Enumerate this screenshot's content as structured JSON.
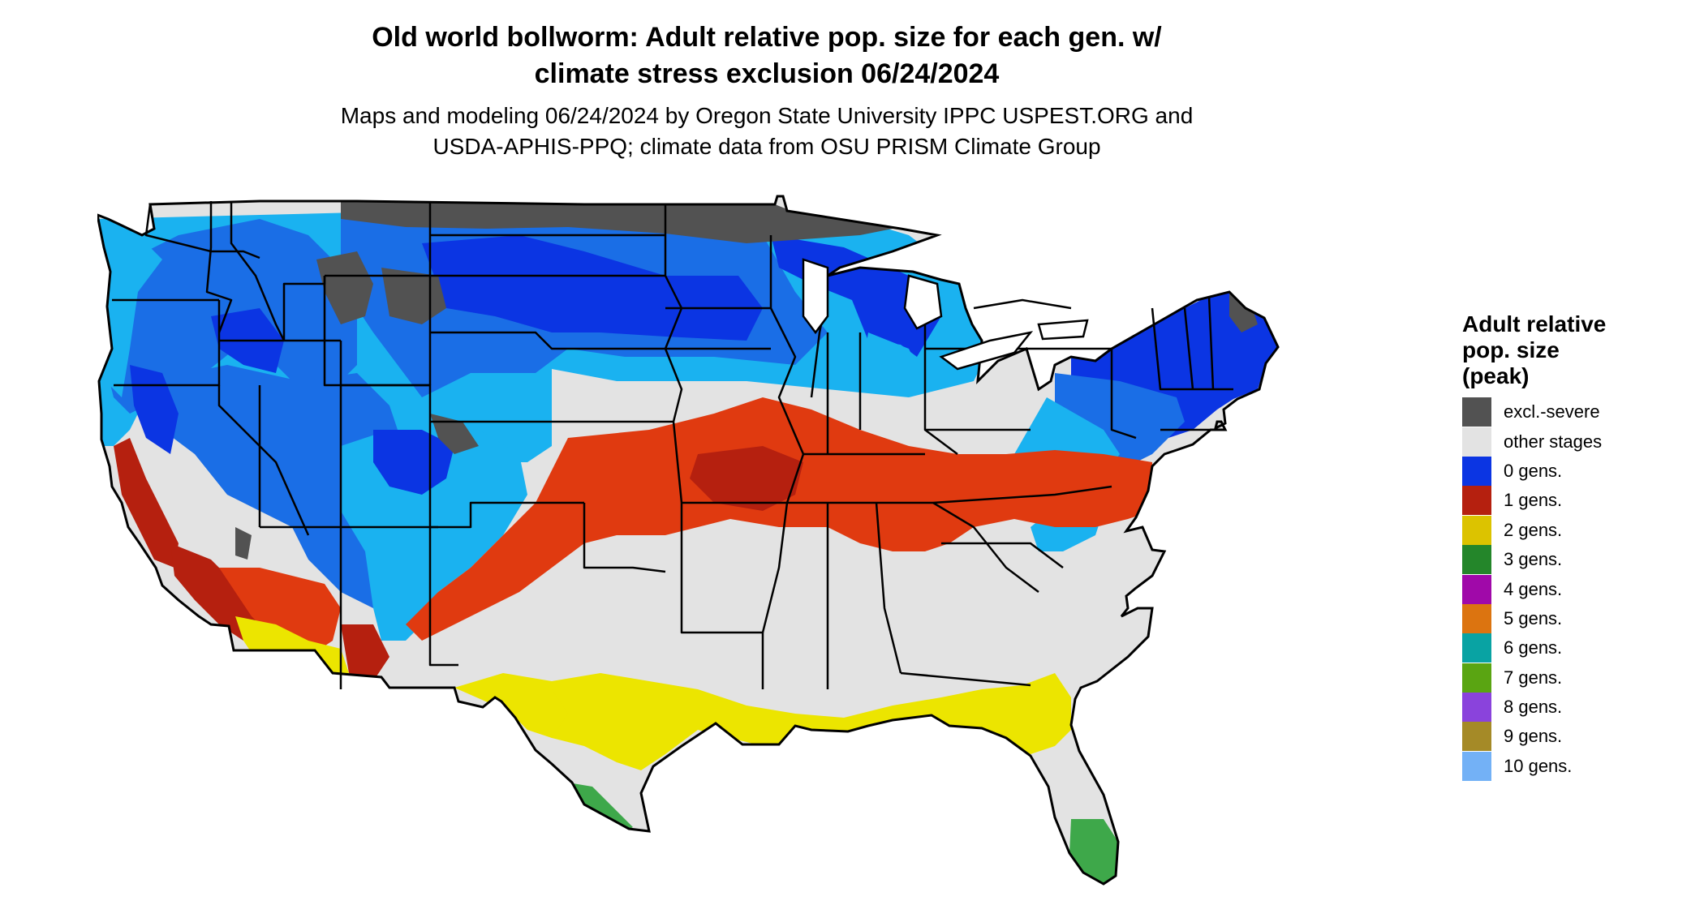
{
  "title": {
    "line1": "Old world bollworm: Adult relative pop. size for each gen. w/",
    "line2": "climate stress exclusion 06/24/2024"
  },
  "subtitle": {
    "line1": "Maps and modeling 06/24/2024 by Oregon State University IPPC USPEST.ORG and",
    "line2": "USDA-APHIS-PPQ; climate data from OSU PRISM Climate Group"
  },
  "legend": {
    "title_line1": "Adult relative",
    "title_line2": "pop. size",
    "title_line3": "(peak)",
    "items": [
      {
        "label": "excl.-severe",
        "color": "#525252"
      },
      {
        "label": "other stages",
        "color": "#e3e3e3"
      },
      {
        "label": "0 gens.",
        "color": "#0b35e3"
      },
      {
        "label": "1 gens.",
        "color": "#b5200f"
      },
      {
        "label": "2 gens.",
        "color": "#dcc300"
      },
      {
        "label": "3 gens.",
        "color": "#24862a"
      },
      {
        "label": "4 gens.",
        "color": "#a009a9"
      },
      {
        "label": "5 gens.",
        "color": "#dc7410"
      },
      {
        "label": "6 gens.",
        "color": "#09a3a3"
      },
      {
        "label": "7 gens.",
        "color": "#5aa512"
      },
      {
        "label": "8 gens.",
        "color": "#8a43dc"
      },
      {
        "label": "9 gens.",
        "color": "#a58a27"
      },
      {
        "label": "10 gens.",
        "color": "#73b1f6"
      }
    ]
  },
  "map": {
    "colors": {
      "excluded": "#525252",
      "other": "#e3e3e3",
      "gen0_dark": "#0b35e3",
      "gen0_mid": "#1a6ee6",
      "gen0_light": "#1ab2f0",
      "gen1_red": "#e03a10",
      "gen1_dark": "#b5200f",
      "gen2": "#ece500",
      "gen3": "#3ea84a",
      "border": "#000000"
    }
  }
}
